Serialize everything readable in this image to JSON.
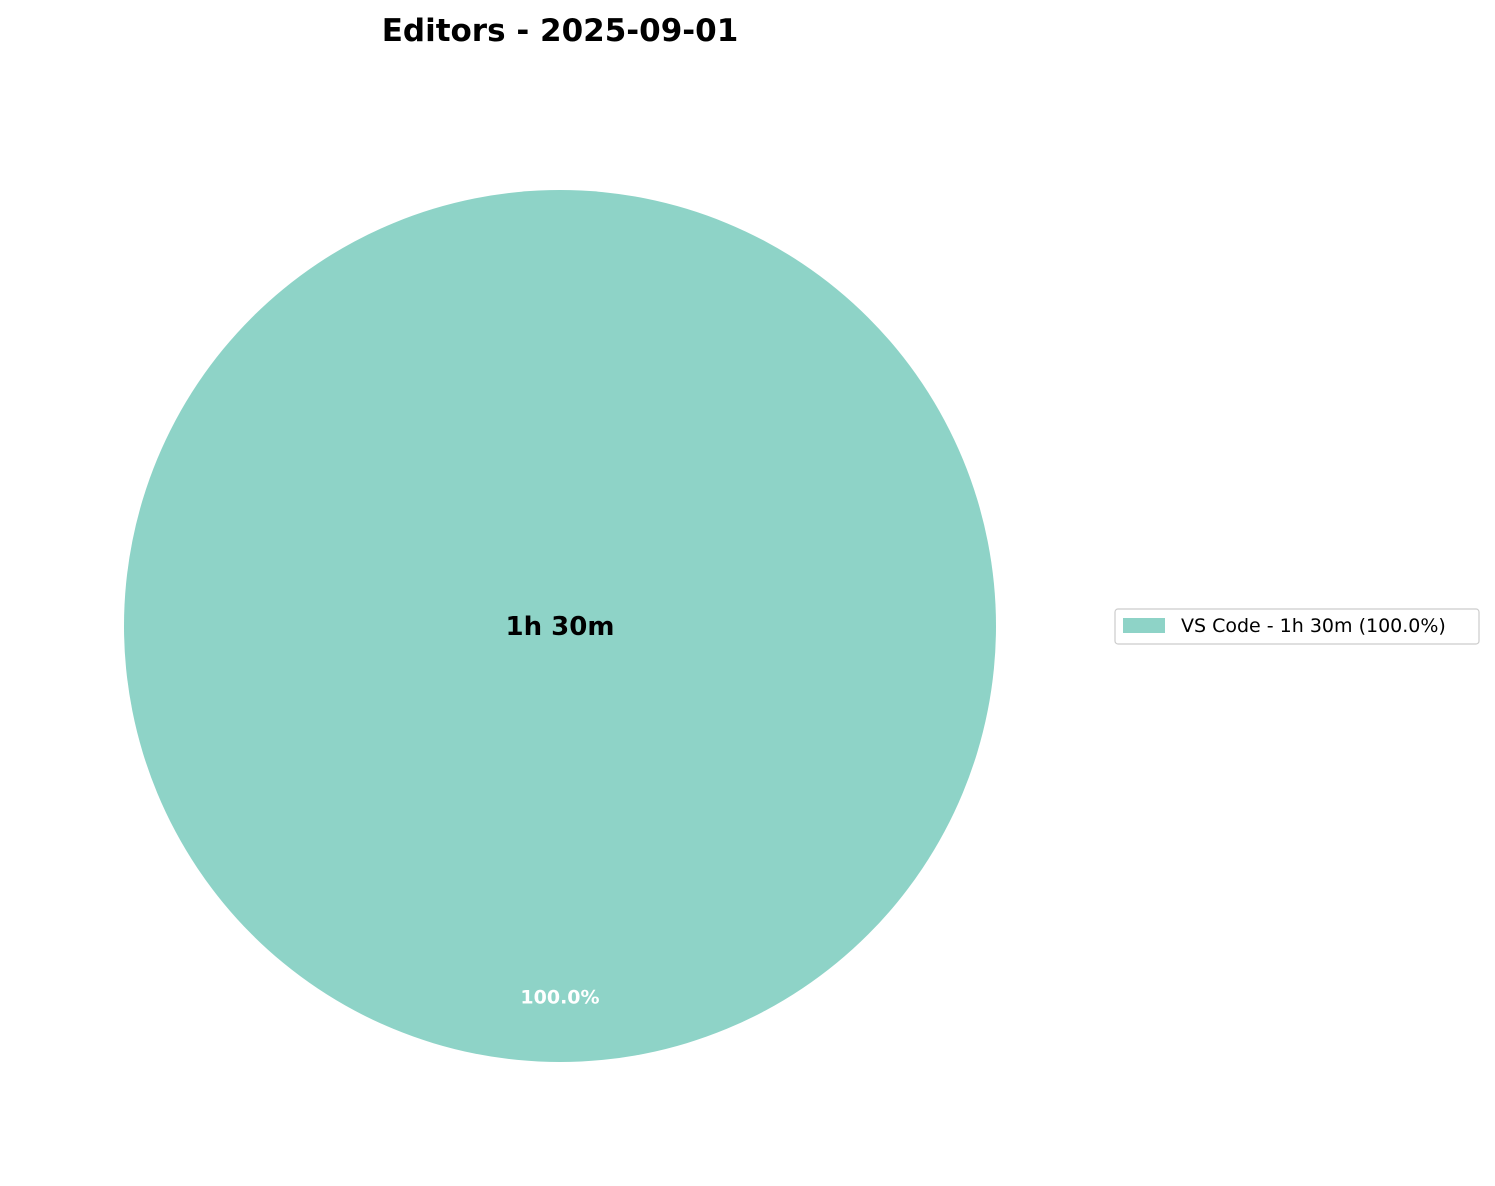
{
  "chart_data": {
    "type": "pie",
    "title": "Editors - 2025-09-01",
    "center_label": "1h 30m",
    "slices": [
      {
        "label": "VS Code",
        "duration": "1h 30m",
        "value": 90,
        "percent": 100.0,
        "percent_label": "100.0%",
        "legend_label": "VS Code - 1h 30m (100.0%)",
        "color": "#8ed3c7"
      }
    ],
    "legend_position": "right"
  }
}
